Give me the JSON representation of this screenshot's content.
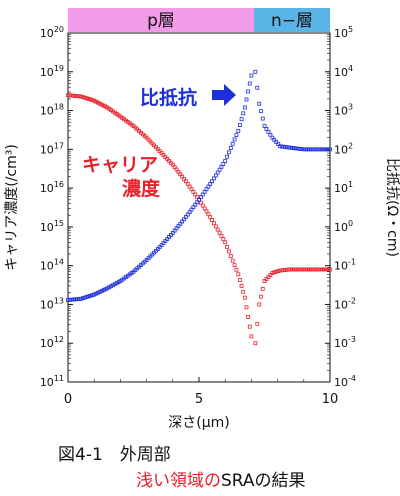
{
  "figure": {
    "caption_line1": "図4-1　外周部",
    "caption_line2_red": "浅い領域の",
    "caption_line2_black": "SRAの結果"
  },
  "regions": {
    "p_label": "p層",
    "n_label": "n−層",
    "p_color": "#f29be8",
    "n_color": "#5ab4e6"
  },
  "annotations": {
    "resistivity_label": "比抵抗",
    "carrier_label_line1": "キャリア",
    "carrier_label_line2": "濃度",
    "blue": "#1f2fd8",
    "red": "#e8202a"
  },
  "chart_data": {
    "type": "scatter",
    "xlabel": "深さ(μm)",
    "ylabel_left": "キャリア濃度(/cm³)",
    "ylabel_right": "比抵抗(Ω・cm)",
    "xlim": [
      0,
      10
    ],
    "xticks": [
      "0",
      "5",
      "10"
    ],
    "ylim_left": [
      100000000000.0,
      1e+20
    ],
    "ylim_right": [
      0.0001,
      100000.0
    ],
    "log_scale": true,
    "left_ticks": [
      "10^11",
      "10^12",
      "10^13",
      "10^14",
      "10^15",
      "10^16",
      "10^17",
      "10^18",
      "10^19",
      "10^20"
    ],
    "right_ticks": [
      "10^-4",
      "10^-3",
      "10^-2",
      "10^-1",
      "10^0",
      "10^1",
      "10^2",
      "10^3",
      "10^4",
      "10^5"
    ],
    "p_region_x": [
      0,
      7.1
    ],
    "n_region_x": [
      7.1,
      10
    ],
    "series": [
      {
        "axis": "left",
        "color": "#e8202a",
        "x": [
          0,
          0.5,
          1,
          1.5,
          2,
          2.5,
          3,
          3.5,
          4,
          4.5,
          5,
          5.5,
          6,
          6.5,
          6.75,
          7.0
        ],
        "y": [
          2.5e+18,
          2.3e+18,
          1.8e+18,
          1.2e+18,
          7e+17,
          4e+17,
          2e+17,
          9e+16,
          4e+16,
          1.5e+16,
          5000000000000000.0,
          1500000000000000.0,
          400000000000000.0,
          60000000000000.0,
          15000000000000.0,
          1500000000000.0
        ]
      },
      {
        "axis": "left",
        "color": "#e8202a",
        "x": [
          7.15,
          7.3,
          7.5,
          7.8,
          8.1,
          8.5,
          9,
          9.5,
          10
        ],
        "y": [
          1000000000000.0,
          10000000000000.0,
          40000000000000.0,
          65000000000000.0,
          75000000000000.0,
          80000000000000.0,
          80000000000000.0,
          80000000000000.0,
          80000000000000.0
        ]
      },
      {
        "axis": "right",
        "color": "#1f2fd8",
        "x": [
          0,
          0.5,
          1,
          1.5,
          2,
          2.5,
          3,
          3.5,
          4,
          4.5,
          5,
          5.5,
          6,
          6.5,
          6.75,
          7.0
        ],
        "y": [
          0.013,
          0.014,
          0.018,
          0.026,
          0.04,
          0.07,
          0.14,
          0.3,
          0.7,
          1.8,
          5,
          15,
          50,
          300,
          1200,
          8000
        ]
      },
      {
        "axis": "right",
        "color": "#1f2fd8",
        "x": [
          7.15,
          7.3,
          7.5,
          7.8,
          8.1,
          8.5,
          9,
          9.5,
          10
        ],
        "y": [
          10000,
          1500,
          400,
          200,
          120,
          110,
          100,
          100,
          100
        ]
      }
    ]
  }
}
